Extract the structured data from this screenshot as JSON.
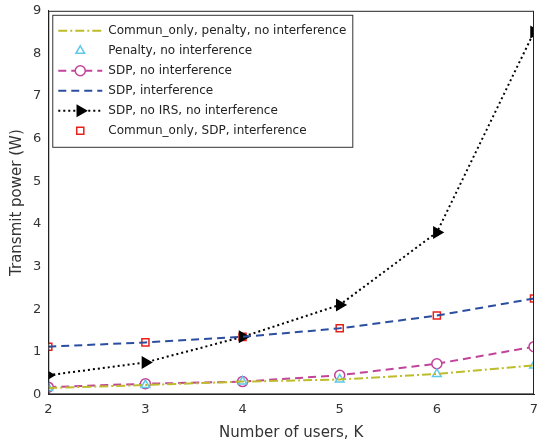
{
  "chart_data": {
    "type": "line",
    "x_label": "Number of users, K",
    "y_label": "Transmit power (W)",
    "x": [
      2,
      3,
      4,
      5,
      6,
      7
    ],
    "xlim": [
      2,
      7
    ],
    "xticks": [
      2,
      3,
      4,
      5,
      6,
      7
    ],
    "ylim": [
      0,
      9
    ],
    "yticks": [
      0,
      1,
      2,
      3,
      4,
      5,
      6,
      7,
      8,
      9
    ],
    "grid": false,
    "legend": "upper left",
    "series": [
      {
        "name": "Commun_only, penalty, no interference",
        "color": "#bdbd2b",
        "marker": "none",
        "line_style": "dashdot",
        "values": [
          0.15,
          0.22,
          0.3,
          0.35,
          0.48,
          0.68
        ]
      },
      {
        "name": "Penalty, no interference",
        "color": "#5ec8e6",
        "marker": "triangle",
        "line_style": "none",
        "values": [
          0.15,
          0.22,
          0.3,
          0.35,
          0.48,
          0.68
        ]
      },
      {
        "name": "SDP, no interference",
        "color": "#c1449a",
        "marker": "circle",
        "line_style": "dashed",
        "values": [
          0.17,
          0.25,
          0.3,
          0.45,
          0.72,
          1.12
        ]
      },
      {
        "name": "SDP, interference",
        "color": "#2c4ea0",
        "marker": "none",
        "line_style": "dashed",
        "values": [
          1.12,
          1.22,
          1.35,
          1.55,
          1.85,
          2.25
        ]
      },
      {
        "name": "SDP, no IRS, no interference",
        "color": "#000000",
        "marker": "triangle-right",
        "line_style": "dotted",
        "values": [
          0.45,
          0.75,
          1.35,
          2.1,
          3.8,
          8.5
        ]
      },
      {
        "name": "Commun_only, SDP, interference",
        "color": "#e8201c",
        "marker": "square",
        "line_style": "none",
        "values": [
          1.12,
          1.22,
          1.35,
          1.55,
          1.85,
          2.25
        ]
      }
    ]
  }
}
